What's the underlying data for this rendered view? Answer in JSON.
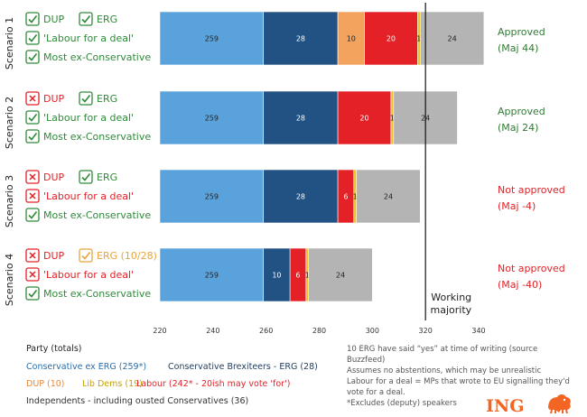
{
  "colors": {
    "conservative": "#5aa2dc",
    "brexiteers": "#215283",
    "dup": "#f4a35e",
    "libdem": "#efc226",
    "labour": "#e32127",
    "independent": "#b4b4b4",
    "check": "#2f8a3a",
    "cross": "#e32127",
    "erg_partial": "#e8a33d",
    "approved": "#2f7d32",
    "not_approved": "#e32127",
    "logo": "#f26522"
  },
  "chart_data": {
    "type": "bar",
    "orientation": "horizontal",
    "stacked": true,
    "xlim": [
      220,
      340
    ],
    "x_ticks": [
      "220",
      "240",
      "260",
      "280",
      "300",
      "320",
      "340"
    ],
    "reference_line": {
      "value": 320,
      "label_lines": [
        "Working",
        "majority"
      ]
    },
    "categories": [
      "Scenario 1",
      "Scenario 2",
      "Scenario 3",
      "Scenario 4"
    ],
    "series_legend": [
      {
        "name": "Conservative ex ERG (259*)",
        "color_key": "conservative"
      },
      {
        "name": "Conservative Brexiteers - ERG (28)",
        "color_key": "brexiteers"
      },
      {
        "name": "DUP (10)",
        "color_key": "dup"
      },
      {
        "name": "Lib Dems (19)",
        "color_key": "libdem"
      },
      {
        "name": "Labour (242* - 20ish may vote 'for')",
        "color_key": "labour"
      },
      {
        "name": "Independents - including ousted Conservatives (36)",
        "color_key": "independent"
      }
    ],
    "scenarios": [
      {
        "name": "Scenario 1",
        "conditions": [
          {
            "mark": "check",
            "text": "DUP"
          },
          {
            "mark": "check",
            "text": "ERG"
          },
          {
            "mark": "check",
            "text": "'Labour for a deal'"
          },
          {
            "mark": "check",
            "text": "Most ex-Conservative"
          }
        ],
        "segments": [
          {
            "value": 259,
            "color_key": "conservative",
            "label": "259"
          },
          {
            "value": 28,
            "color_key": "brexiteers",
            "label": "28"
          },
          {
            "value": 10,
            "color_key": "dup",
            "label": "10"
          },
          {
            "value": 20,
            "color_key": "labour",
            "label": "20"
          },
          {
            "value": 1,
            "color_key": "libdem",
            "label": "1"
          },
          {
            "value": 24,
            "color_key": "independent",
            "label": "24"
          }
        ],
        "outcome": "Approved",
        "majority": "(Maj 44)",
        "approved": true
      },
      {
        "name": "Scenario 2",
        "conditions": [
          {
            "mark": "cross",
            "text": "DUP"
          },
          {
            "mark": "check",
            "text": "ERG"
          },
          {
            "mark": "check",
            "text": "'Labour for a deal'"
          },
          {
            "mark": "check",
            "text": "Most ex-Conservative"
          }
        ],
        "segments": [
          {
            "value": 259,
            "color_key": "conservative",
            "label": "259"
          },
          {
            "value": 28,
            "color_key": "brexiteers",
            "label": "28"
          },
          {
            "value": 20,
            "color_key": "labour",
            "label": "20"
          },
          {
            "value": 1,
            "color_key": "libdem",
            "label": "1"
          },
          {
            "value": 24,
            "color_key": "independent",
            "label": "24"
          }
        ],
        "outcome": "Approved",
        "majority": "(Maj 24)",
        "approved": true
      },
      {
        "name": "Scenario 3",
        "conditions": [
          {
            "mark": "cross",
            "text": "DUP"
          },
          {
            "mark": "check",
            "text": "ERG"
          },
          {
            "mark": "cross",
            "text": "'Labour for a deal'"
          },
          {
            "mark": "check",
            "text": "Most ex-Conservative"
          }
        ],
        "segments": [
          {
            "value": 259,
            "color_key": "conservative",
            "label": "259"
          },
          {
            "value": 28,
            "color_key": "brexiteers",
            "label": "28"
          },
          {
            "value": 6,
            "color_key": "labour",
            "label": "6"
          },
          {
            "value": 1,
            "color_key": "libdem",
            "label": "1"
          },
          {
            "value": 24,
            "color_key": "independent",
            "label": "24"
          }
        ],
        "outcome": "Not approved",
        "majority": "(Maj -4)",
        "approved": false
      },
      {
        "name": "Scenario 4",
        "conditions": [
          {
            "mark": "cross",
            "text": "DUP"
          },
          {
            "mark": "partial",
            "text": "ERG (10/28)"
          },
          {
            "mark": "cross",
            "text": "'Labour for a deal'"
          },
          {
            "mark": "check",
            "text": "Most ex-Conservative"
          }
        ],
        "segments": [
          {
            "value": 259,
            "color_key": "conservative",
            "label": "259"
          },
          {
            "value": 10,
            "color_key": "brexiteers",
            "label": "10"
          },
          {
            "value": 6,
            "color_key": "labour",
            "label": "6"
          },
          {
            "value": 1,
            "color_key": "libdem",
            "label": "1"
          },
          {
            "value": 24,
            "color_key": "independent",
            "label": "24"
          }
        ],
        "outcome": "Not approved",
        "majority": "(Maj -40)",
        "approved": false
      }
    ]
  },
  "legend": {
    "title": "Party (totals)"
  },
  "notes": [
    "10 ERG have said “yes” at time of writing (source",
    "Buzzfeed)",
    "Assumes no abstentions, which may be unrealistic",
    "Labour for a deal = MPs that wrote to EU signalling they'd",
    "vote for a deal.",
    "*Excludes (deputy) speakers"
  ],
  "logo": {
    "text": "ING",
    "icon": "lion-icon"
  }
}
